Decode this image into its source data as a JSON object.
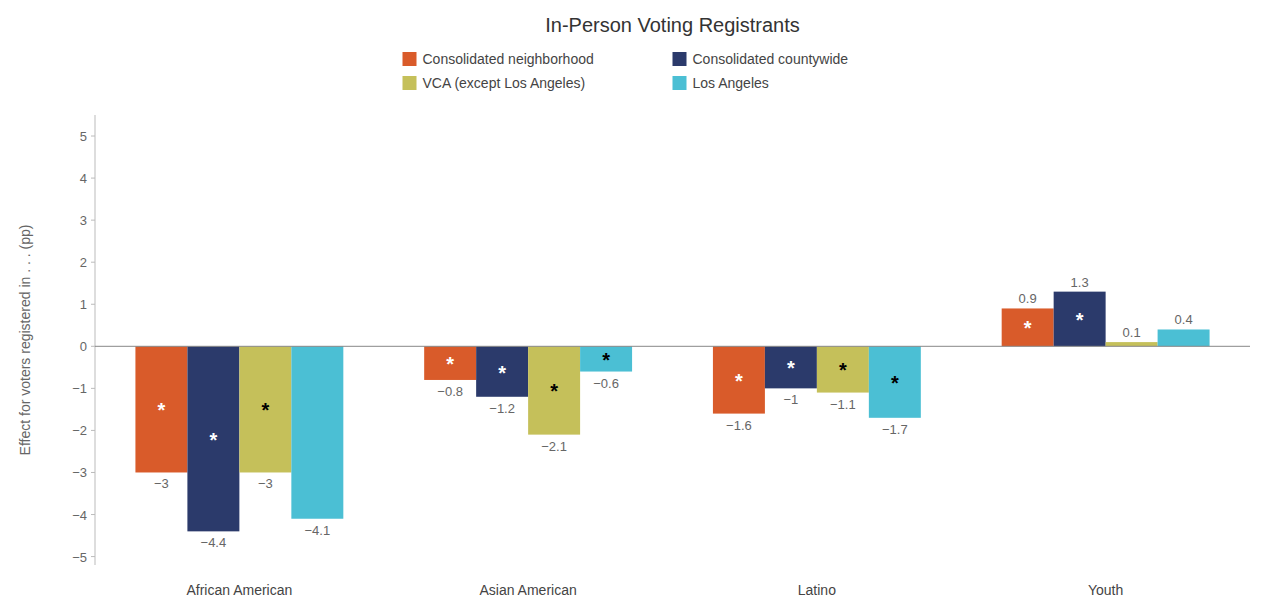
{
  "chart_data": {
    "type": "bar",
    "title": "In-Person Voting Registrants",
    "y_label": "Effect for voters registered in . . . (pp)",
    "categories": [
      "African American",
      "Asian American",
      "Latino",
      "Youth"
    ],
    "series": [
      {
        "name": "Consolidated neighborhood",
        "color": "#D95B2A",
        "values": [
          -3,
          -0.8,
          -1.6,
          0.9
        ],
        "value_labels": [
          "−3",
          "−0.8",
          "−1.6",
          "0.9"
        ],
        "stars": [
          true,
          true,
          true,
          true
        ],
        "star_color": "#ffffff"
      },
      {
        "name": "Consolidated countywide",
        "color": "#2B3A6B",
        "values": [
          -4.4,
          -1.2,
          -1,
          1.3
        ],
        "value_labels": [
          "−4.4",
          "−1.2",
          "−1",
          "1.3"
        ],
        "stars": [
          true,
          true,
          true,
          true
        ],
        "star_color": "#ffffff"
      },
      {
        "name": "VCA (except Los Angeles)",
        "color": "#C5C05A",
        "values": [
          -3,
          -2.1,
          -1.1,
          0.1
        ],
        "value_labels": [
          "−3",
          "−2.1",
          "−1.1",
          "0.1"
        ],
        "stars": [
          true,
          true,
          true,
          false
        ],
        "star_color": "#000000"
      },
      {
        "name": "Los Angeles",
        "color": "#4BBFD4",
        "values": [
          -4.1,
          -0.6,
          -1.7,
          0.4
        ],
        "value_labels": [
          "−4.1",
          "−0.6",
          "−1.7",
          "0.4"
        ],
        "stars": [
          false,
          true,
          true,
          false
        ],
        "star_color": "#000000"
      }
    ],
    "star_text": "*",
    "ylim": [
      -5.2,
      5.5
    ],
    "yticks": [
      {
        "value": -5,
        "label": "−5"
      },
      {
        "value": -4,
        "label": "−4"
      },
      {
        "value": -3,
        "label": "−3"
      },
      {
        "value": -2,
        "label": "−2"
      },
      {
        "value": -1,
        "label": "−1"
      },
      0,
      1,
      2,
      3,
      4,
      5
    ],
    "grid": false,
    "legend": "top",
    "data_labels": true
  }
}
